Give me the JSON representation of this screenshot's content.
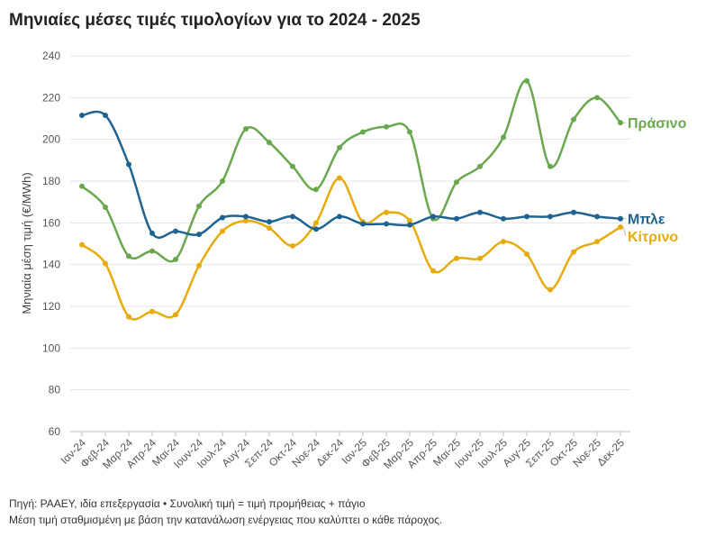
{
  "title": "Μηνιαίες μέσες τιμές τιμολογίων για το 2024 - 2025",
  "footer": {
    "line1": "Πηγή: ΡΑΑΕΥ, ιδία επεξεργασία • Συνολική τιμή = τιμή προμήθειας + πάγιο",
    "line2": "Μέση τιμή σταθμισμένη με βάση την κατανάλωση ενέργειας που καλύπτει ο κάθε πάροχος."
  },
  "chart_data": {
    "type": "line",
    "title": "Μηνιαίες μέσες τιμές τιμολογίων για το 2024 - 2025",
    "xlabel": "",
    "ylabel": "Μηνιαία μέση τιμή (€/MWh)",
    "ylim": [
      60,
      240
    ],
    "yticks": [
      60,
      80,
      100,
      120,
      140,
      160,
      180,
      200,
      220,
      240
    ],
    "grid": true,
    "legend": "end-of-line labels",
    "categories": [
      "Ιαν-24",
      "Φεβ-24",
      "Μαρ-24",
      "Απρ-24",
      "Μαι-24",
      "Ιουν-24",
      "Ιουλ-24",
      "Αυγ-24",
      "Σεπ-24",
      "Οκτ-24",
      "Νοε-24",
      "Δεκ-24",
      "Ιαν-25",
      "Φεβ-25",
      "Μαρ-25",
      "Απρ-25",
      "Μαι-25",
      "Ιουν-25",
      "Ιουλ-25",
      "Αυγ-25",
      "Σεπ-25",
      "Οκτ-25",
      "Νοε-25",
      "Δεκ-25"
    ],
    "series": [
      {
        "name": "Πράσινο",
        "color": "#6aa84f",
        "values": [
          177.5,
          167.5,
          144,
          146.5,
          142.5,
          168,
          180,
          205,
          198.5,
          187,
          176,
          196,
          203.5,
          206,
          203.5,
          162,
          179.5,
          187,
          201,
          228,
          187,
          209.5,
          220,
          208
        ]
      },
      {
        "name": "Μπλε",
        "color": "#1f6391",
        "values": [
          211.5,
          211.5,
          188,
          155,
          156,
          154.5,
          162.5,
          163,
          160.5,
          163,
          157,
          163,
          159.5,
          159.5,
          159,
          163,
          162,
          165,
          162,
          163,
          163,
          165,
          163,
          162
        ]
      },
      {
        "name": "Κίτρινο",
        "color": "#e8ab0c",
        "values": [
          149.5,
          140.5,
          115,
          117.5,
          116,
          139.5,
          156,
          161,
          157.5,
          149,
          160,
          181.5,
          160.5,
          165,
          161,
          137,
          143,
          143,
          151,
          145,
          128,
          146,
          151,
          158
        ]
      }
    ]
  }
}
